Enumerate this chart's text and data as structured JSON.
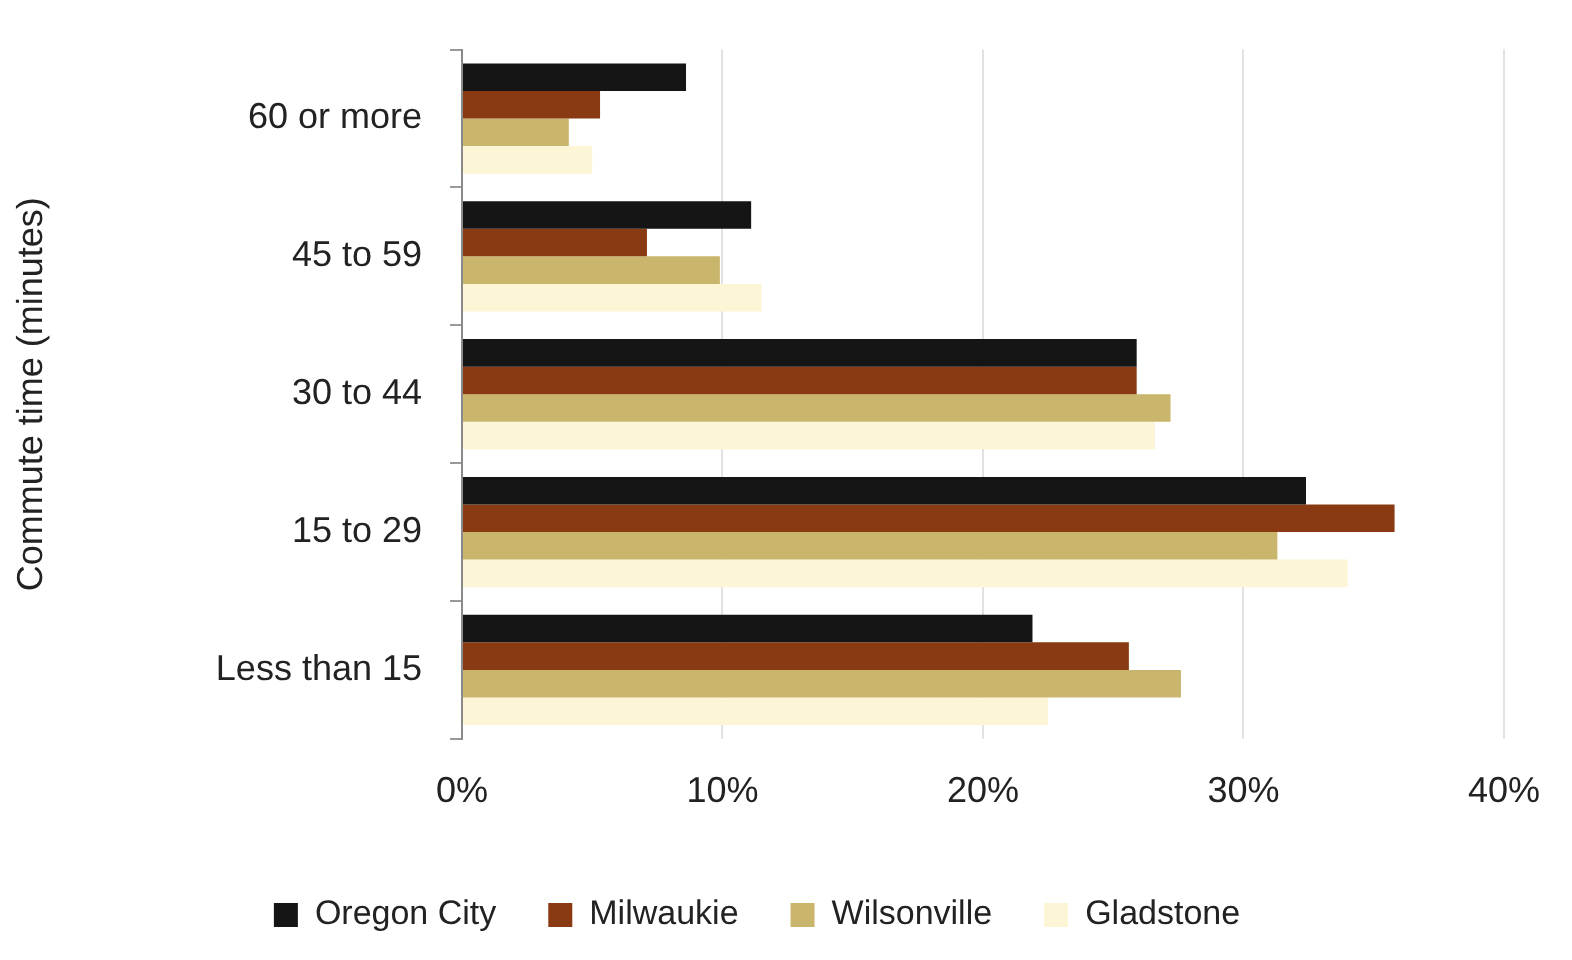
{
  "chart_data": {
    "type": "bar",
    "orientation": "horizontal",
    "ylabel": "Commute time (minutes)",
    "categories": [
      "60 or more",
      "45 to 59",
      "30 to 44",
      "15 to 29",
      "Less than 15"
    ],
    "series": [
      {
        "name": "Oregon City",
        "color": "#151515",
        "values": [
          8.6,
          11.1,
          25.9,
          32.4,
          21.9
        ]
      },
      {
        "name": "Milwaukie",
        "color": "#8a3a12",
        "values": [
          5.3,
          7.1,
          25.9,
          35.8,
          25.6
        ]
      },
      {
        "name": "Wilsonville",
        "color": "#c9b56c",
        "values": [
          4.1,
          9.9,
          27.2,
          31.3,
          27.6
        ]
      },
      {
        "name": "Gladstone",
        "color": "#fcf5d6",
        "values": [
          5.0,
          11.5,
          26.6,
          34.0,
          22.5
        ]
      }
    ],
    "xlim": [
      0,
      40
    ],
    "xticks": [
      {
        "value": 0,
        "label": "0%"
      },
      {
        "value": 10,
        "label": "10%"
      },
      {
        "value": 20,
        "label": "20%"
      },
      {
        "value": 30,
        "label": "30%"
      },
      {
        "value": 40,
        "label": "40%"
      }
    ],
    "grid": "x",
    "legend": "bottom"
  }
}
